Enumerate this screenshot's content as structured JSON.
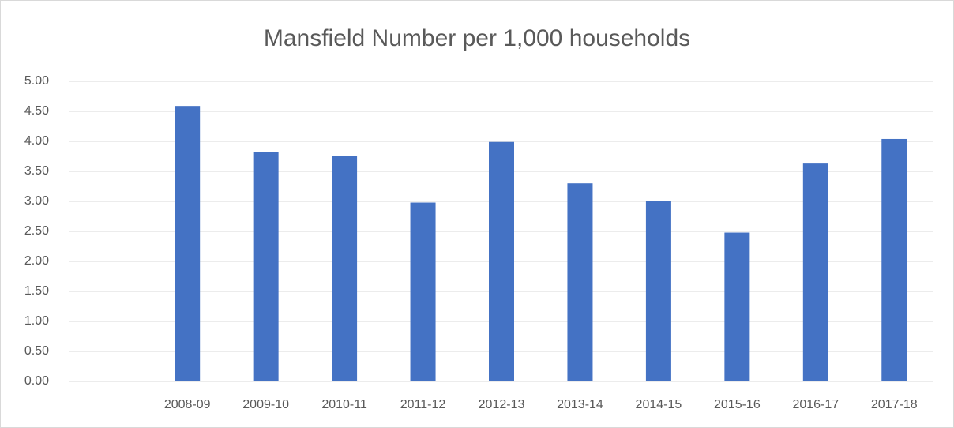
{
  "chart_data": {
    "type": "bar",
    "title": "Mansfield Number per 1,000 households",
    "categories": [
      null,
      "2008-09",
      "2009-10",
      "2010-11",
      "2011-12",
      "2012-13",
      "2013-14",
      "2014-15",
      "2015-16",
      "2016-17",
      "2017-18"
    ],
    "values": [
      null,
      4.59,
      3.82,
      3.75,
      2.98,
      3.99,
      3.3,
      3.0,
      2.48,
      3.63,
      4.04
    ],
    "color": "#4472c4",
    "ylim": [
      0,
      5
    ],
    "yticks": [
      {
        "value": 0,
        "label": "0.00"
      },
      {
        "value": 0.5,
        "label": "0.50"
      },
      {
        "value": 1,
        "label": "1.00"
      },
      {
        "value": 1.5,
        "label": "1.50"
      },
      {
        "value": 2,
        "label": "2.00"
      },
      {
        "value": 2.5,
        "label": "2.50"
      },
      {
        "value": 3,
        "label": "3.00"
      },
      {
        "value": 3.5,
        "label": "3.50"
      },
      {
        "value": 4,
        "label": "4.00"
      },
      {
        "value": 4.5,
        "label": "4.50"
      },
      {
        "value": 5,
        "label": "5.00"
      }
    ],
    "grid": true
  }
}
